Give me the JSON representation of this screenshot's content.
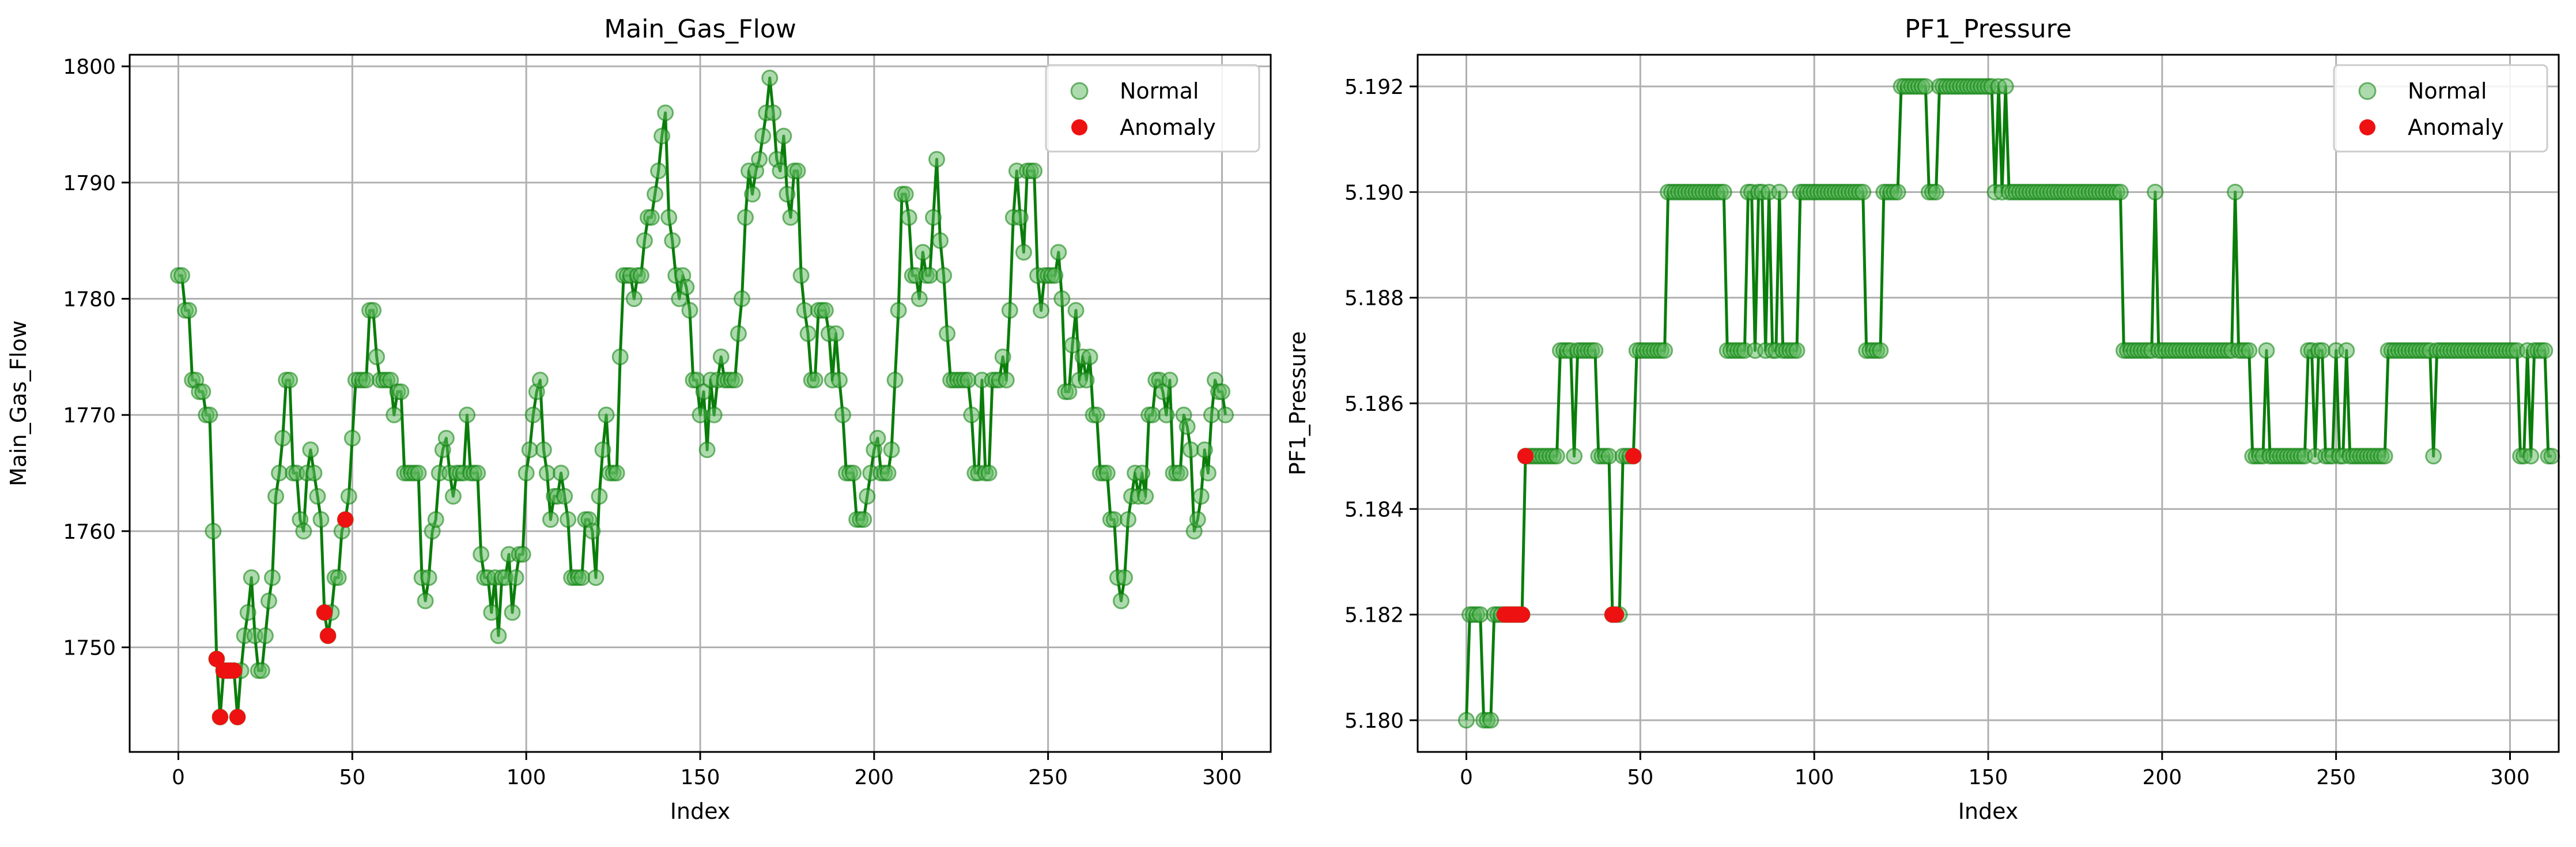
{
  "colors": {
    "line": "#0a7d0a",
    "normal": "#5cb85c",
    "anomaly": "#ee1111",
    "grid": "#b0b0b0",
    "frame": "#000000"
  },
  "chart_data": [
    {
      "type": "line",
      "title": "Main_Gas_Flow",
      "xlabel": "Index",
      "ylabel": "Main_Gas_Flow",
      "xlim": [
        -14,
        314
      ],
      "ylim": [
        1741,
        1801
      ],
      "xticks": [
        0,
        50,
        100,
        150,
        200,
        250,
        300
      ],
      "yticks": [
        1750,
        1760,
        1770,
        1780,
        1790,
        1800
      ],
      "grid": true,
      "legend": {
        "position": "top-right",
        "entries": [
          {
            "label": "Normal"
          },
          {
            "label": "Anomaly"
          }
        ]
      },
      "x_start": 0,
      "values": [
        1782,
        1782,
        1779,
        1779,
        1773,
        1773,
        1772,
        1772,
        1770,
        1770,
        1760,
        1749,
        1744,
        1748,
        1748,
        1748,
        1748,
        1744,
        1748,
        1751,
        1753,
        1756,
        1751,
        1748,
        1748,
        1751,
        1754,
        1756,
        1763,
        1765,
        1768,
        1773,
        1773,
        1765,
        1765,
        1761,
        1760,
        1765,
        1767,
        1765,
        1763,
        1761,
        1753,
        1751,
        1753,
        1756,
        1756,
        1760,
        1761,
        1763,
        1768,
        1773,
        1773,
        1773,
        1773,
        1779,
        1779,
        1775,
        1773,
        1773,
        1773,
        1773,
        1770,
        1772,
        1772,
        1765,
        1765,
        1765,
        1765,
        1765,
        1756,
        1754,
        1756,
        1760,
        1761,
        1765,
        1767,
        1768,
        1765,
        1763,
        1765,
        1765,
        1765,
        1770,
        1765,
        1765,
        1765,
        1758,
        1756,
        1756,
        1753,
        1756,
        1751,
        1756,
        1756,
        1758,
        1753,
        1756,
        1758,
        1758,
        1765,
        1767,
        1770,
        1772,
        1773,
        1767,
        1765,
        1761,
        1763,
        1763,
        1765,
        1763,
        1761,
        1756,
        1756,
        1756,
        1756,
        1761,
        1761,
        1760,
        1756,
        1763,
        1767,
        1770,
        1765,
        1765,
        1765,
        1775,
        1782,
        1782,
        1782,
        1780,
        1782,
        1782,
        1785,
        1787,
        1787,
        1789,
        1791,
        1794,
        1796,
        1787,
        1785,
        1782,
        1780,
        1782,
        1781,
        1779,
        1773,
        1773,
        1770,
        1772,
        1767,
        1773,
        1770,
        1773,
        1775,
        1773,
        1773,
        1773,
        1773,
        1777,
        1780,
        1787,
        1791,
        1789,
        1791,
        1792,
        1794,
        1796,
        1799,
        1796,
        1792,
        1791,
        1794,
        1789,
        1787,
        1791,
        1791,
        1782,
        1779,
        1777,
        1773,
        1773,
        1779,
        1779,
        1779,
        1777,
        1773,
        1777,
        1773,
        1770,
        1765,
        1765,
        1765,
        1761,
        1761,
        1761,
        1763,
        1765,
        1767,
        1768,
        1765,
        1765,
        1765,
        1767,
        1773,
        1779,
        1789,
        1789,
        1787,
        1782,
        1782,
        1780,
        1784,
        1782,
        1782,
        1787,
        1792,
        1785,
        1782,
        1777,
        1773,
        1773,
        1773,
        1773,
        1773,
        1773,
        1770,
        1765,
        1765,
        1773,
        1765,
        1765,
        1773,
        1773,
        1773,
        1775,
        1773,
        1779,
        1787,
        1791,
        1787,
        1784,
        1791,
        1791,
        1791,
        1782,
        1779,
        1782,
        1782,
        1782,
        1782,
        1784,
        1780,
        1772,
        1772,
        1776,
        1779,
        1773,
        1775,
        1773,
        1775,
        1770,
        1770,
        1765,
        1765,
        1765,
        1761,
        1761,
        1756,
        1754,
        1756,
        1761,
        1763,
        1765,
        1763,
        1765,
        1763,
        1770,
        1770,
        1773,
        1773,
        1772,
        1770,
        1773,
        1765,
        1765,
        1765,
        1770,
        1769,
        1767,
        1760,
        1761,
        1763,
        1767,
        1765,
        1770,
        1773,
        1772,
        1772,
        1770
      ],
      "anomaly_indices": [
        11,
        12,
        13,
        14,
        15,
        16,
        17,
        42,
        43,
        48
      ]
    },
    {
      "type": "line",
      "title": "PF1_Pressure",
      "xlabel": "Index",
      "ylabel": "PF1_Pressure",
      "xlim": [
        -14,
        314
      ],
      "ylim": [
        5.1794,
        5.1926
      ],
      "xticks": [
        0,
        50,
        100,
        150,
        200,
        250,
        300
      ],
      "yticks": [
        5.18,
        5.182,
        5.184,
        5.186,
        5.188,
        5.19,
        5.192
      ],
      "ytick_labels": [
        "5.180",
        "5.182",
        "5.184",
        "5.186",
        "5.188",
        "5.190",
        "5.192"
      ],
      "grid": true,
      "legend": {
        "position": "top-right",
        "entries": [
          {
            "label": "Normal"
          },
          {
            "label": "Anomaly"
          }
        ]
      },
      "x_start": 0,
      "values": [
        5.18,
        5.182,
        5.182,
        5.182,
        5.182,
        5.18,
        5.18,
        5.18,
        5.182,
        5.182,
        5.182,
        5.182,
        5.182,
        5.182,
        5.182,
        5.182,
        5.182,
        5.185,
        5.185,
        5.185,
        5.185,
        5.185,
        5.185,
        5.185,
        5.185,
        5.185,
        5.185,
        5.187,
        5.187,
        5.187,
        5.187,
        5.185,
        5.187,
        5.187,
        5.187,
        5.187,
        5.187,
        5.187,
        5.185,
        5.185,
        5.185,
        5.185,
        5.182,
        5.182,
        5.182,
        5.185,
        5.185,
        5.185,
        5.185,
        5.187,
        5.187,
        5.187,
        5.187,
        5.187,
        5.187,
        5.187,
        5.187,
        5.187,
        5.19,
        5.19,
        5.19,
        5.19,
        5.19,
        5.19,
        5.19,
        5.19,
        5.19,
        5.19,
        5.19,
        5.19,
        5.19,
        5.19,
        5.19,
        5.19,
        5.19,
        5.187,
        5.187,
        5.187,
        5.187,
        5.187,
        5.187,
        5.19,
        5.19,
        5.187,
        5.19,
        5.19,
        5.187,
        5.19,
        5.187,
        5.187,
        5.19,
        5.187,
        5.187,
        5.187,
        5.187,
        5.187,
        5.19,
        5.19,
        5.19,
        5.19,
        5.19,
        5.19,
        5.19,
        5.19,
        5.19,
        5.19,
        5.19,
        5.19,
        5.19,
        5.19,
        5.19,
        5.19,
        5.19,
        5.19,
        5.19,
        5.187,
        5.187,
        5.187,
        5.187,
        5.187,
        5.19,
        5.19,
        5.19,
        5.19,
        5.19,
        5.192,
        5.192,
        5.192,
        5.192,
        5.192,
        5.192,
        5.192,
        5.192,
        5.19,
        5.19,
        5.19,
        5.192,
        5.192,
        5.192,
        5.192,
        5.192,
        5.192,
        5.192,
        5.192,
        5.192,
        5.192,
        5.192,
        5.192,
        5.192,
        5.192,
        5.192,
        5.192,
        5.19,
        5.192,
        5.19,
        5.192,
        5.19,
        5.19,
        5.19,
        5.19,
        5.19,
        5.19,
        5.19,
        5.19,
        5.19,
        5.19,
        5.19,
        5.19,
        5.19,
        5.19,
        5.19,
        5.19,
        5.19,
        5.19,
        5.19,
        5.19,
        5.19,
        5.19,
        5.19,
        5.19,
        5.19,
        5.19,
        5.19,
        5.19,
        5.19,
        5.19,
        5.19,
        5.19,
        5.19,
        5.187,
        5.187,
        5.187,
        5.187,
        5.187,
        5.187,
        5.187,
        5.187,
        5.187,
        5.19,
        5.187,
        5.187,
        5.187,
        5.187,
        5.187,
        5.187,
        5.187,
        5.187,
        5.187,
        5.187,
        5.187,
        5.187,
        5.187,
        5.187,
        5.187,
        5.187,
        5.187,
        5.187,
        5.187,
        5.187,
        5.187,
        5.187,
        5.19,
        5.187,
        5.187,
        5.187,
        5.187,
        5.185,
        5.185,
        5.185,
        5.185,
        5.187,
        5.185,
        5.185,
        5.185,
        5.185,
        5.185,
        5.185,
        5.185,
        5.185,
        5.185,
        5.185,
        5.185,
        5.187,
        5.187,
        5.185,
        5.187,
        5.187,
        5.185,
        5.185,
        5.185,
        5.187,
        5.185,
        5.185,
        5.187,
        5.185,
        5.185,
        5.185,
        5.185,
        5.185,
        5.185,
        5.185,
        5.185,
        5.185,
        5.185,
        5.185,
        5.187,
        5.187,
        5.187,
        5.187,
        5.187,
        5.187,
        5.187,
        5.187,
        5.187,
        5.187,
        5.187,
        5.187,
        5.187,
        5.185,
        5.187,
        5.187,
        5.187,
        5.187,
        5.187,
        5.187,
        5.187,
        5.187,
        5.187,
        5.187,
        5.187,
        5.187,
        5.187,
        5.187,
        5.187,
        5.187,
        5.187,
        5.187,
        5.187,
        5.187,
        5.187,
        5.187,
        5.187,
        5.187,
        5.185,
        5.185,
        5.187,
        5.185,
        5.187,
        5.187,
        5.187,
        5.187,
        5.185,
        5.185
      ],
      "anomaly_indices": [
        11,
        12,
        13,
        14,
        15,
        16,
        17,
        42,
        43,
        48
      ]
    }
  ]
}
